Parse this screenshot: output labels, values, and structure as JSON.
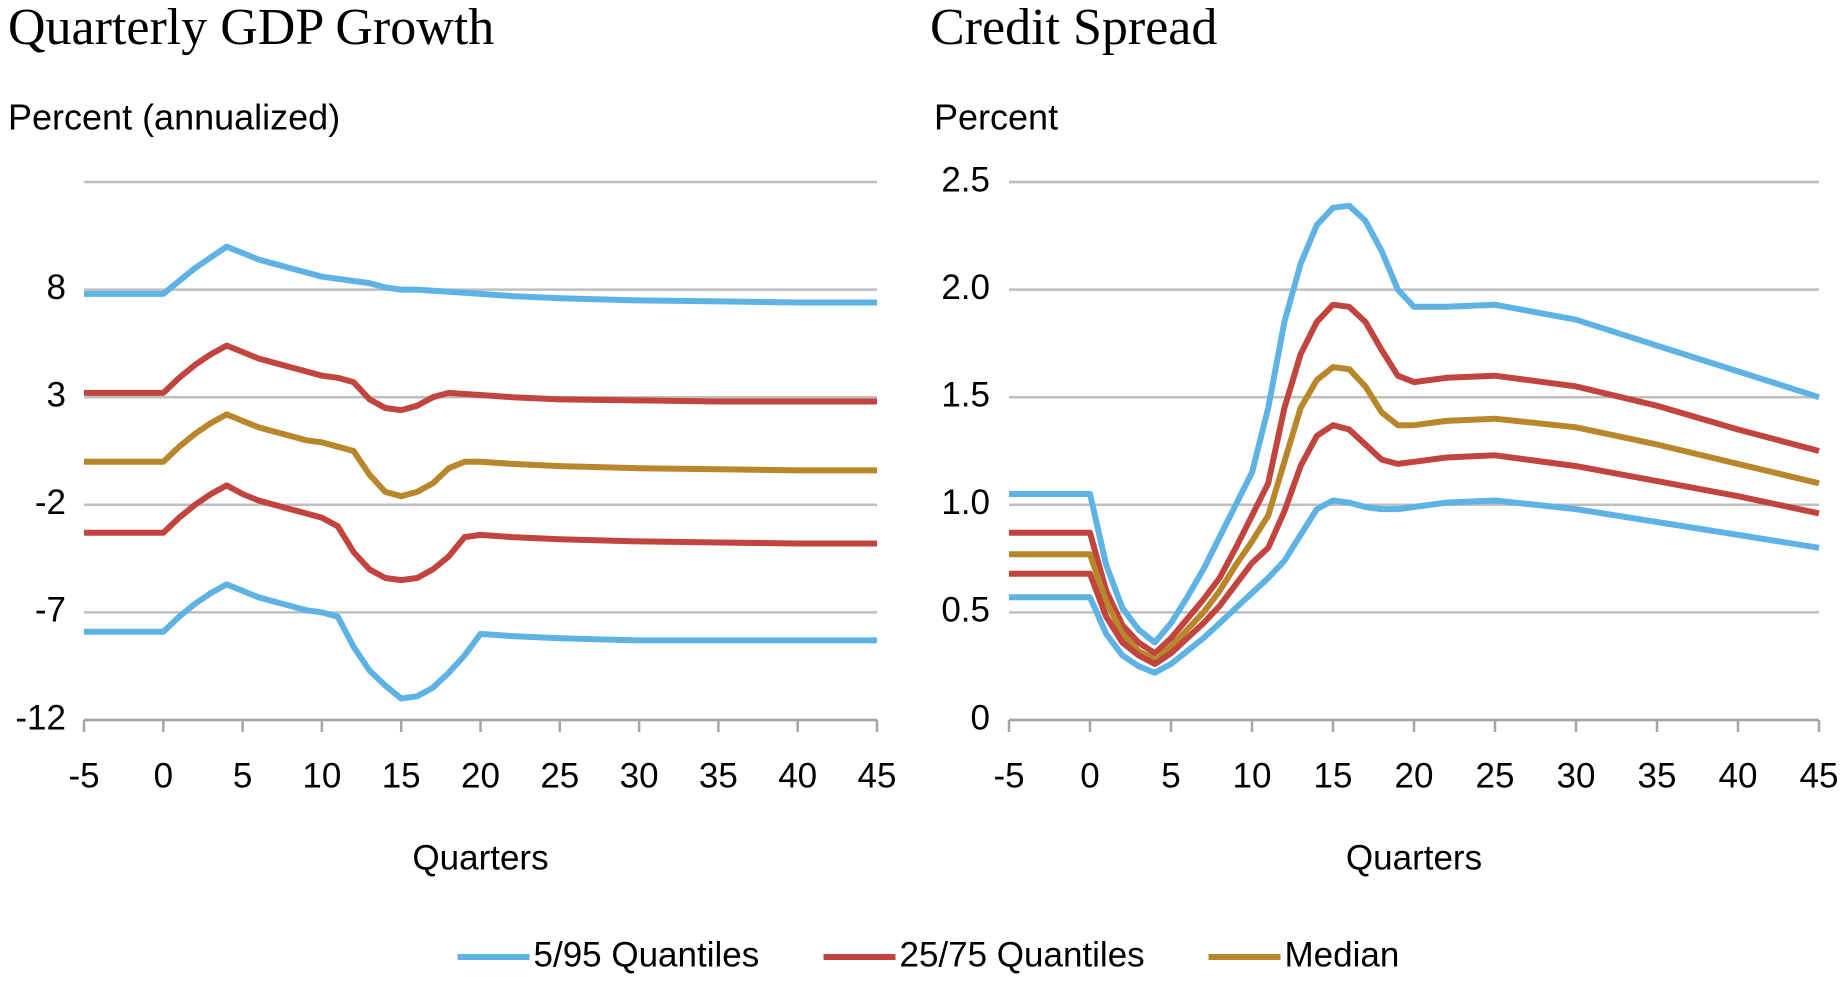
{
  "chart_data": [
    {
      "type": "line",
      "title": "Quarterly GDP Growth",
      "y_label": "Percent (annualized)",
      "x_label": "Quarters",
      "x": [
        -5,
        0,
        1,
        2,
        3,
        4,
        5,
        6,
        7,
        8,
        9,
        10,
        11,
        12,
        13,
        14,
        15,
        16,
        17,
        18,
        19,
        20,
        22,
        25,
        30,
        35,
        40,
        45
      ],
      "xlim": [
        -5,
        45
      ],
      "xticks": [
        -5,
        0,
        5,
        10,
        15,
        20,
        25,
        30,
        35,
        40,
        45
      ],
      "ylim": [
        -12,
        13
      ],
      "yticks": [
        -12,
        -7,
        -2,
        3,
        8
      ],
      "grid": true,
      "series": [
        {
          "name": "5/95 Quantiles",
          "color": "#5eb3e4",
          "values": [
            7.8,
            7.8,
            8.4,
            9.0,
            9.5,
            10.0,
            9.7,
            9.4,
            9.2,
            9.0,
            8.8,
            8.6,
            8.5,
            8.4,
            8.3,
            8.1,
            8.0,
            8.0,
            7.95,
            7.9,
            7.85,
            7.8,
            7.7,
            7.6,
            7.5,
            7.45,
            7.4,
            7.4
          ]
        },
        {
          "name": "25/75 Quantiles",
          "color": "#c1443f",
          "values": [
            3.2,
            3.2,
            3.9,
            4.5,
            5.0,
            5.4,
            5.1,
            4.8,
            4.6,
            4.4,
            4.2,
            4.0,
            3.9,
            3.7,
            2.9,
            2.5,
            2.4,
            2.6,
            3.0,
            3.2,
            3.15,
            3.1,
            3.0,
            2.9,
            2.85,
            2.8,
            2.8,
            2.8
          ]
        },
        {
          "name": "Median",
          "color": "#b8862b",
          "values": [
            0,
            0,
            0.7,
            1.3,
            1.8,
            2.2,
            1.9,
            1.6,
            1.4,
            1.2,
            1.0,
            0.9,
            0.7,
            0.5,
            -0.6,
            -1.4,
            -1.6,
            -1.4,
            -1.0,
            -0.3,
            0,
            0,
            -0.1,
            -0.2,
            -0.3,
            -0.35,
            -0.4,
            -0.4
          ]
        },
        {
          "name": "25/75 Quantiles",
          "color": "#c1443f",
          "values": [
            -3.3,
            -3.3,
            -2.6,
            -2.0,
            -1.5,
            -1.1,
            -1.5,
            -1.8,
            -2.0,
            -2.2,
            -2.4,
            -2.6,
            -3.0,
            -4.2,
            -5.0,
            -5.4,
            -5.5,
            -5.4,
            -5.0,
            -4.4,
            -3.5,
            -3.4,
            -3.5,
            -3.6,
            -3.7,
            -3.75,
            -3.8,
            -3.8
          ]
        },
        {
          "name": "5/95 Quantiles",
          "color": "#5eb3e4",
          "values": [
            -7.9,
            -7.9,
            -7.2,
            -6.6,
            -6.1,
            -5.7,
            -6.0,
            -6.3,
            -6.5,
            -6.7,
            -6.9,
            -7.0,
            -7.2,
            -8.6,
            -9.7,
            -10.4,
            -11.0,
            -10.9,
            -10.5,
            -9.8,
            -9.0,
            -8.0,
            -8.1,
            -8.2,
            -8.3,
            -8.3,
            -8.3,
            -8.3
          ]
        }
      ]
    },
    {
      "type": "line",
      "title": "Credit Spread",
      "y_label": "Percent",
      "x_label": "Quarters",
      "x": [
        -5,
        0,
        1,
        2,
        3,
        4,
        5,
        6,
        7,
        8,
        9,
        10,
        11,
        12,
        13,
        14,
        15,
        16,
        17,
        18,
        19,
        20,
        22,
        25,
        30,
        35,
        40,
        45
      ],
      "xlim": [
        -5,
        45
      ],
      "xticks": [
        -5,
        0,
        5,
        10,
        15,
        20,
        25,
        30,
        35,
        40,
        45
      ],
      "ylim": [
        0,
        2.5
      ],
      "yticks": [
        0,
        0.5,
        {
          "value": 1,
          "label": "1.0"
        },
        1.5,
        {
          "value": 2,
          "label": "2.0"
        },
        2.5
      ],
      "grid": true,
      "series": [
        {
          "name": "5/95 Quantiles",
          "color": "#5eb3e4",
          "values": [
            1.05,
            1.05,
            0.72,
            0.52,
            0.42,
            0.36,
            0.45,
            0.57,
            0.7,
            0.85,
            1.0,
            1.15,
            1.45,
            1.85,
            2.12,
            2.3,
            2.38,
            2.39,
            2.32,
            2.18,
            2.0,
            1.92,
            1.92,
            1.93,
            1.86,
            1.74,
            1.62,
            1.5
          ]
        },
        {
          "name": "25/75 Quantiles",
          "color": "#c1443f",
          "values": [
            0.87,
            0.87,
            0.6,
            0.44,
            0.36,
            0.31,
            0.38,
            0.47,
            0.56,
            0.66,
            0.8,
            0.95,
            1.1,
            1.45,
            1.7,
            1.85,
            1.93,
            1.92,
            1.85,
            1.72,
            1.6,
            1.57,
            1.59,
            1.6,
            1.55,
            1.46,
            1.35,
            1.25
          ]
        },
        {
          "name": "Median",
          "color": "#b8862b",
          "values": [
            0.77,
            0.77,
            0.55,
            0.4,
            0.32,
            0.28,
            0.34,
            0.42,
            0.5,
            0.6,
            0.72,
            0.83,
            0.95,
            1.2,
            1.45,
            1.58,
            1.64,
            1.63,
            1.55,
            1.43,
            1.37,
            1.37,
            1.39,
            1.4,
            1.36,
            1.28,
            1.19,
            1.1
          ]
        },
        {
          "name": "25/75 Quantiles",
          "color": "#c1443f",
          "values": [
            0.68,
            0.68,
            0.48,
            0.36,
            0.3,
            0.26,
            0.31,
            0.38,
            0.45,
            0.53,
            0.63,
            0.73,
            0.8,
            0.97,
            1.18,
            1.32,
            1.37,
            1.35,
            1.28,
            1.21,
            1.19,
            1.2,
            1.22,
            1.23,
            1.18,
            1.11,
            1.04,
            0.96
          ]
        },
        {
          "name": "5/95 Quantiles",
          "color": "#5eb3e4",
          "values": [
            0.57,
            0.57,
            0.4,
            0.3,
            0.25,
            0.22,
            0.26,
            0.32,
            0.38,
            0.45,
            0.52,
            0.59,
            0.66,
            0.74,
            0.86,
            0.98,
            1.02,
            1.01,
            0.99,
            0.98,
            0.98,
            0.99,
            1.01,
            1.02,
            0.98,
            0.92,
            0.86,
            0.8
          ]
        }
      ]
    }
  ]
}
